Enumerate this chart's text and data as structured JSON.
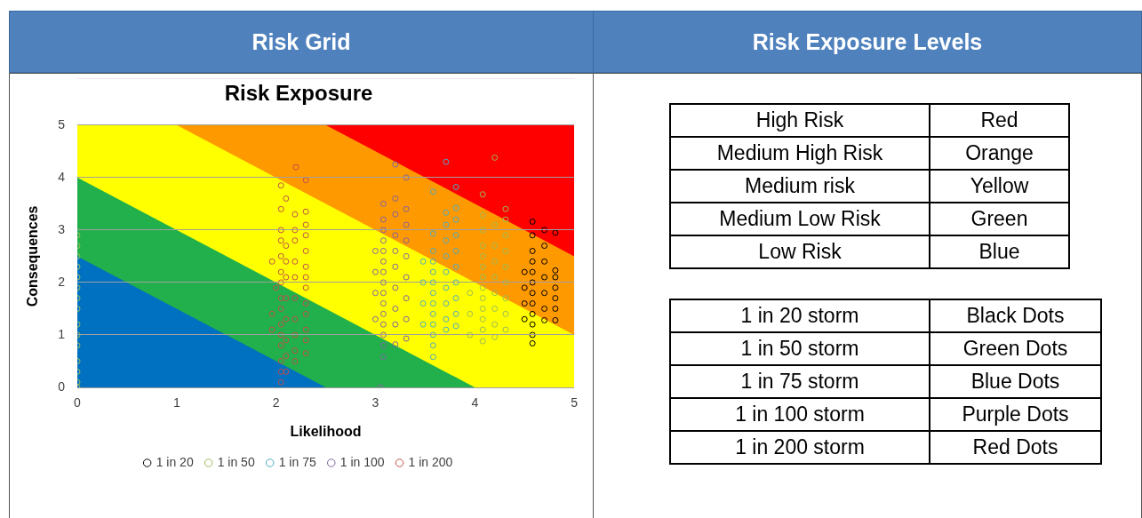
{
  "chart_data": [
    {
      "type": "scatter",
      "title": "Risk Exposure",
      "xlabel": "Likelihood",
      "ylabel": "Consequences",
      "annotations": [
        "Risk Grid"
      ],
      "xlim": [
        0,
        5
      ],
      "xticks": [
        0,
        1,
        2,
        3,
        4,
        5
      ],
      "ylim": [
        0,
        5
      ],
      "yticks": [
        0,
        1,
        2,
        3,
        4,
        5
      ],
      "grid": "y",
      "legend": "bottom",
      "marker": "circle",
      "series": [
        {
          "name": "1 in 20",
          "color": "#000000",
          "x": [
            4.58,
            4.58,
            4.58,
            4.58,
            4.58,
            4.58,
            4.58,
            4.58,
            4.58,
            4.58,
            4.58,
            4.58,
            4.7,
            4.7,
            4.7,
            4.7,
            4.7,
            4.7,
            4.7,
            4.81,
            4.81,
            4.81,
            4.81,
            4.81,
            4.81,
            4.81,
            4.5,
            4.5,
            4.5,
            4.5
          ],
          "values": [
            0.84,
            1.0,
            1.2,
            1.4,
            1.6,
            1.8,
            2.0,
            2.2,
            2.4,
            2.6,
            2.9,
            3.16,
            1.28,
            1.5,
            1.8,
            2.1,
            2.4,
            2.7,
            3.0,
            1.28,
            1.5,
            1.7,
            1.9,
            2.1,
            2.23,
            2.95,
            1.3,
            1.6,
            1.9,
            2.2
          ]
        },
        {
          "name": "1 in 50",
          "color": "#9bbb59",
          "x": [
            0,
            0,
            0,
            0,
            0,
            0,
            0,
            0,
            0,
            0,
            0,
            0,
            0,
            0,
            0,
            4.08,
            4.08,
            4.08,
            4.08,
            4.08,
            4.08,
            4.08,
            4.08,
            4.08,
            4.08,
            4.08,
            4.08,
            4.2,
            4.2,
            4.2,
            4.2,
            4.2,
            4.2,
            4.2,
            4.2,
            4.31,
            4.31,
            4.31,
            4.31,
            4.31,
            4.31,
            4.31,
            4.31,
            4.31,
            3.95,
            3.95,
            3.95,
            4.2,
            4.08
          ],
          "values": [
            0,
            0.1,
            0.3,
            0.5,
            0.8,
            1.0,
            1.2,
            1.5,
            1.7,
            1.9,
            2.1,
            2.3,
            2.5,
            2.7,
            2.9,
            0.88,
            1.1,
            1.3,
            1.5,
            1.7,
            1.9,
            2.1,
            2.3,
            2.5,
            2.7,
            3.0,
            3.28,
            0.96,
            1.2,
            1.5,
            1.8,
            2.1,
            2.4,
            2.7,
            3.1,
            1.1,
            1.4,
            1.7,
            2.0,
            2.3,
            2.6,
            2.9,
            3.2,
            3.4,
            1.0,
            1.4,
            1.8,
            4.38,
            3.68
          ]
        },
        {
          "name": "1 in 75",
          "color": "#4bacc6",
          "x": [
            3.58,
            3.58,
            3.58,
            3.58,
            3.58,
            3.58,
            3.58,
            3.58,
            3.58,
            3.58,
            3.58,
            3.58,
            3.71,
            3.71,
            3.71,
            3.71,
            3.71,
            3.71,
            3.71,
            3.71,
            3.71,
            3.81,
            3.81,
            3.81,
            3.81,
            3.81,
            3.81,
            3.81,
            3.81,
            3.81,
            3.48,
            3.48,
            3.48,
            3.48,
            3.71,
            3.81,
            3.58
          ],
          "values": [
            0.58,
            0.8,
            1.0,
            1.2,
            1.4,
            1.6,
            1.8,
            2.0,
            2.2,
            2.4,
            2.6,
            2.93,
            1.1,
            1.3,
            1.6,
            1.9,
            2.2,
            2.5,
            2.8,
            3.1,
            3.33,
            1.17,
            1.4,
            1.7,
            2.0,
            2.3,
            2.6,
            2.9,
            3.2,
            3.42,
            1.2,
            1.6,
            2.0,
            2.4,
            4.3,
            3.82,
            3.73
          ]
        },
        {
          "name": "1 in 100",
          "color": "#8064a2",
          "x": [
            3.08,
            3.08,
            3.08,
            3.08,
            3.08,
            3.08,
            3.08,
            3.08,
            3.08,
            3.08,
            3.08,
            3.08,
            3.08,
            3.08,
            3.08,
            3.2,
            3.2,
            3.2,
            3.2,
            3.2,
            3.2,
            3.2,
            3.2,
            3.2,
            3.2,
            3.31,
            3.31,
            3.31,
            3.31,
            3.31,
            3.31,
            3.31,
            3.31,
            3.31,
            3.0,
            3.0,
            3.0,
            3.0,
            3.05
          ],
          "values": [
            0.58,
            0.8,
            1.0,
            1.2,
            1.4,
            1.6,
            1.8,
            2.0,
            2.2,
            2.4,
            2.6,
            2.8,
            3.0,
            3.2,
            3.5,
            0.82,
            1.2,
            1.5,
            1.9,
            2.3,
            2.6,
            2.9,
            3.3,
            3.6,
            4.25,
            0.93,
            1.3,
            1.7,
            2.1,
            2.5,
            2.8,
            3.1,
            3.4,
            4.0,
            1.3,
            1.8,
            2.2,
            2.6,
            0
          ]
        },
        {
          "name": "1 in 200",
          "color": "#c0504d",
          "x": [
            1.96,
            1.96,
            1.96,
            2.0,
            2.05,
            2.05,
            2.05,
            2.05,
            2.05,
            2.05,
            2.05,
            2.05,
            2.05,
            2.05,
            2.05,
            2.05,
            2.05,
            2.05,
            2.05,
            2.1,
            2.1,
            2.1,
            2.1,
            2.1,
            2.1,
            2.1,
            2.1,
            2.1,
            2.19,
            2.19,
            2.19,
            2.19,
            2.19,
            2.19,
            2.19,
            2.19,
            2.19,
            2.19,
            2.3,
            2.3,
            2.3,
            2.3,
            2.3,
            2.3,
            2.3,
            2.3,
            2.3,
            2.3,
            2.3,
            2.3,
            2.2,
            2.3
          ],
          "values": [
            2.4,
            1.4,
            1.1,
            1.9,
            0.1,
            0.3,
            0.5,
            0.8,
            1.0,
            1.2,
            1.5,
            1.7,
            2.0,
            2.2,
            2.5,
            2.8,
            3.0,
            3.4,
            3.85,
            0.3,
            0.6,
            0.9,
            1.3,
            1.7,
            2.1,
            2.4,
            2.7,
            3.6,
            0.5,
            0.7,
            1.0,
            1.3,
            1.7,
            2.1,
            2.4,
            2.8,
            3.0,
            3.3,
            0.65,
            0.9,
            1.1,
            1.4,
            1.6,
            1.9,
            2.1,
            2.3,
            2.6,
            2.9,
            3.1,
            3.35,
            4.2,
            3.95
          ]
        },
        {
          "type": "area",
          "marker": "none",
          "color": "#0070c0",
          "x": [
            0,
            2.5
          ],
          "values": [
            2.5,
            0
          ]
        },
        {
          "type": "area",
          "marker": "none",
          "color": "#21b04b",
          "x": [
            0,
            4
          ],
          "values": [
            4,
            0
          ]
        },
        {
          "type": "area",
          "marker": "none",
          "color": "#ffff00",
          "x": [
            0,
            1,
            5
          ],
          "values": [
            5,
            5,
            1
          ]
        },
        {
          "type": "area",
          "marker": "none",
          "color": "#ff9900",
          "x": [
            1,
            2.5,
            5
          ],
          "values": [
            5,
            5,
            2.5
          ]
        },
        {
          "type": "area",
          "marker": "none",
          "color": "#ff0000",
          "x": [
            2.5,
            5
          ],
          "values": [
            5,
            5
          ]
        }
      ]
    },
    {
      "type": "other",
      "title": "Risk Exposure Levels",
      "annotations": [
        "High Risk",
        "Red",
        "Medium High Risk",
        "Orange",
        "Medium risk",
        "Yellow",
        "Medium Low Risk",
        "Green",
        "Low Risk",
        "Blue"
      ]
    },
    {
      "type": "other",
      "annotations": [
        "1 in 20 storm",
        "Black Dots",
        "1 in 50 storm",
        "Green Dots",
        "1 in 75 storm",
        "Blue Dots",
        "1 in 100 storm",
        "Purple Dots",
        "1 in 200 storm",
        "Red Dots"
      ]
    }
  ]
}
